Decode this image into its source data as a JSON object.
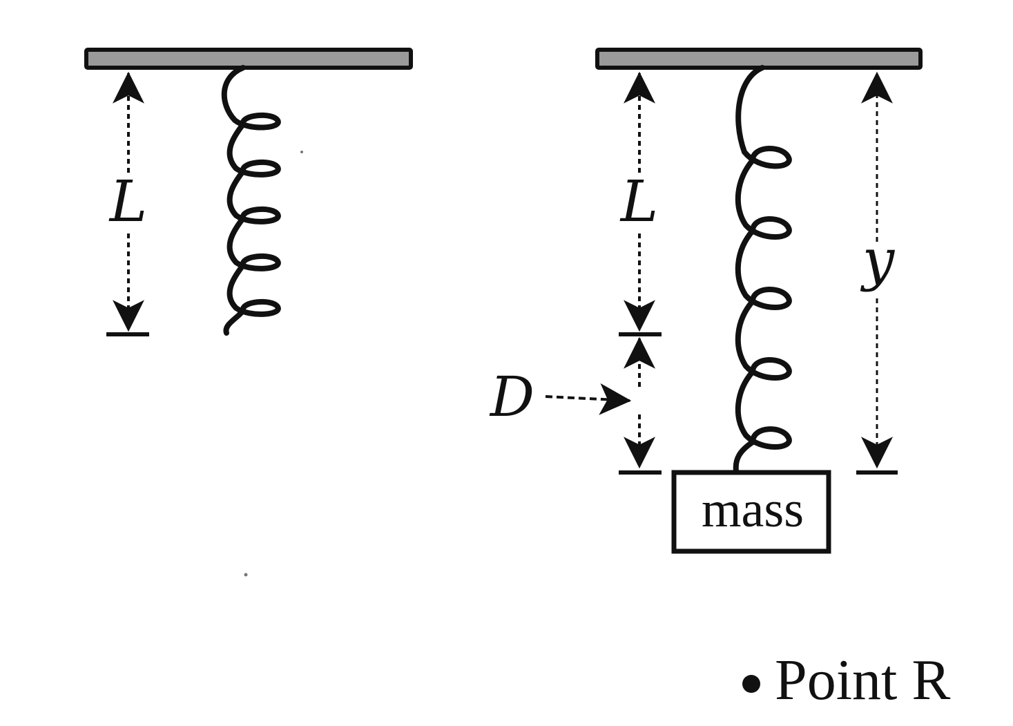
{
  "labels": {
    "left_length": "L",
    "right_length": "L",
    "stretch": "D",
    "total_length": "y",
    "mass": "mass",
    "point": "Point R"
  },
  "colors": {
    "ink": "#111111",
    "ceiling_fill": "#9a9a9a"
  }
}
